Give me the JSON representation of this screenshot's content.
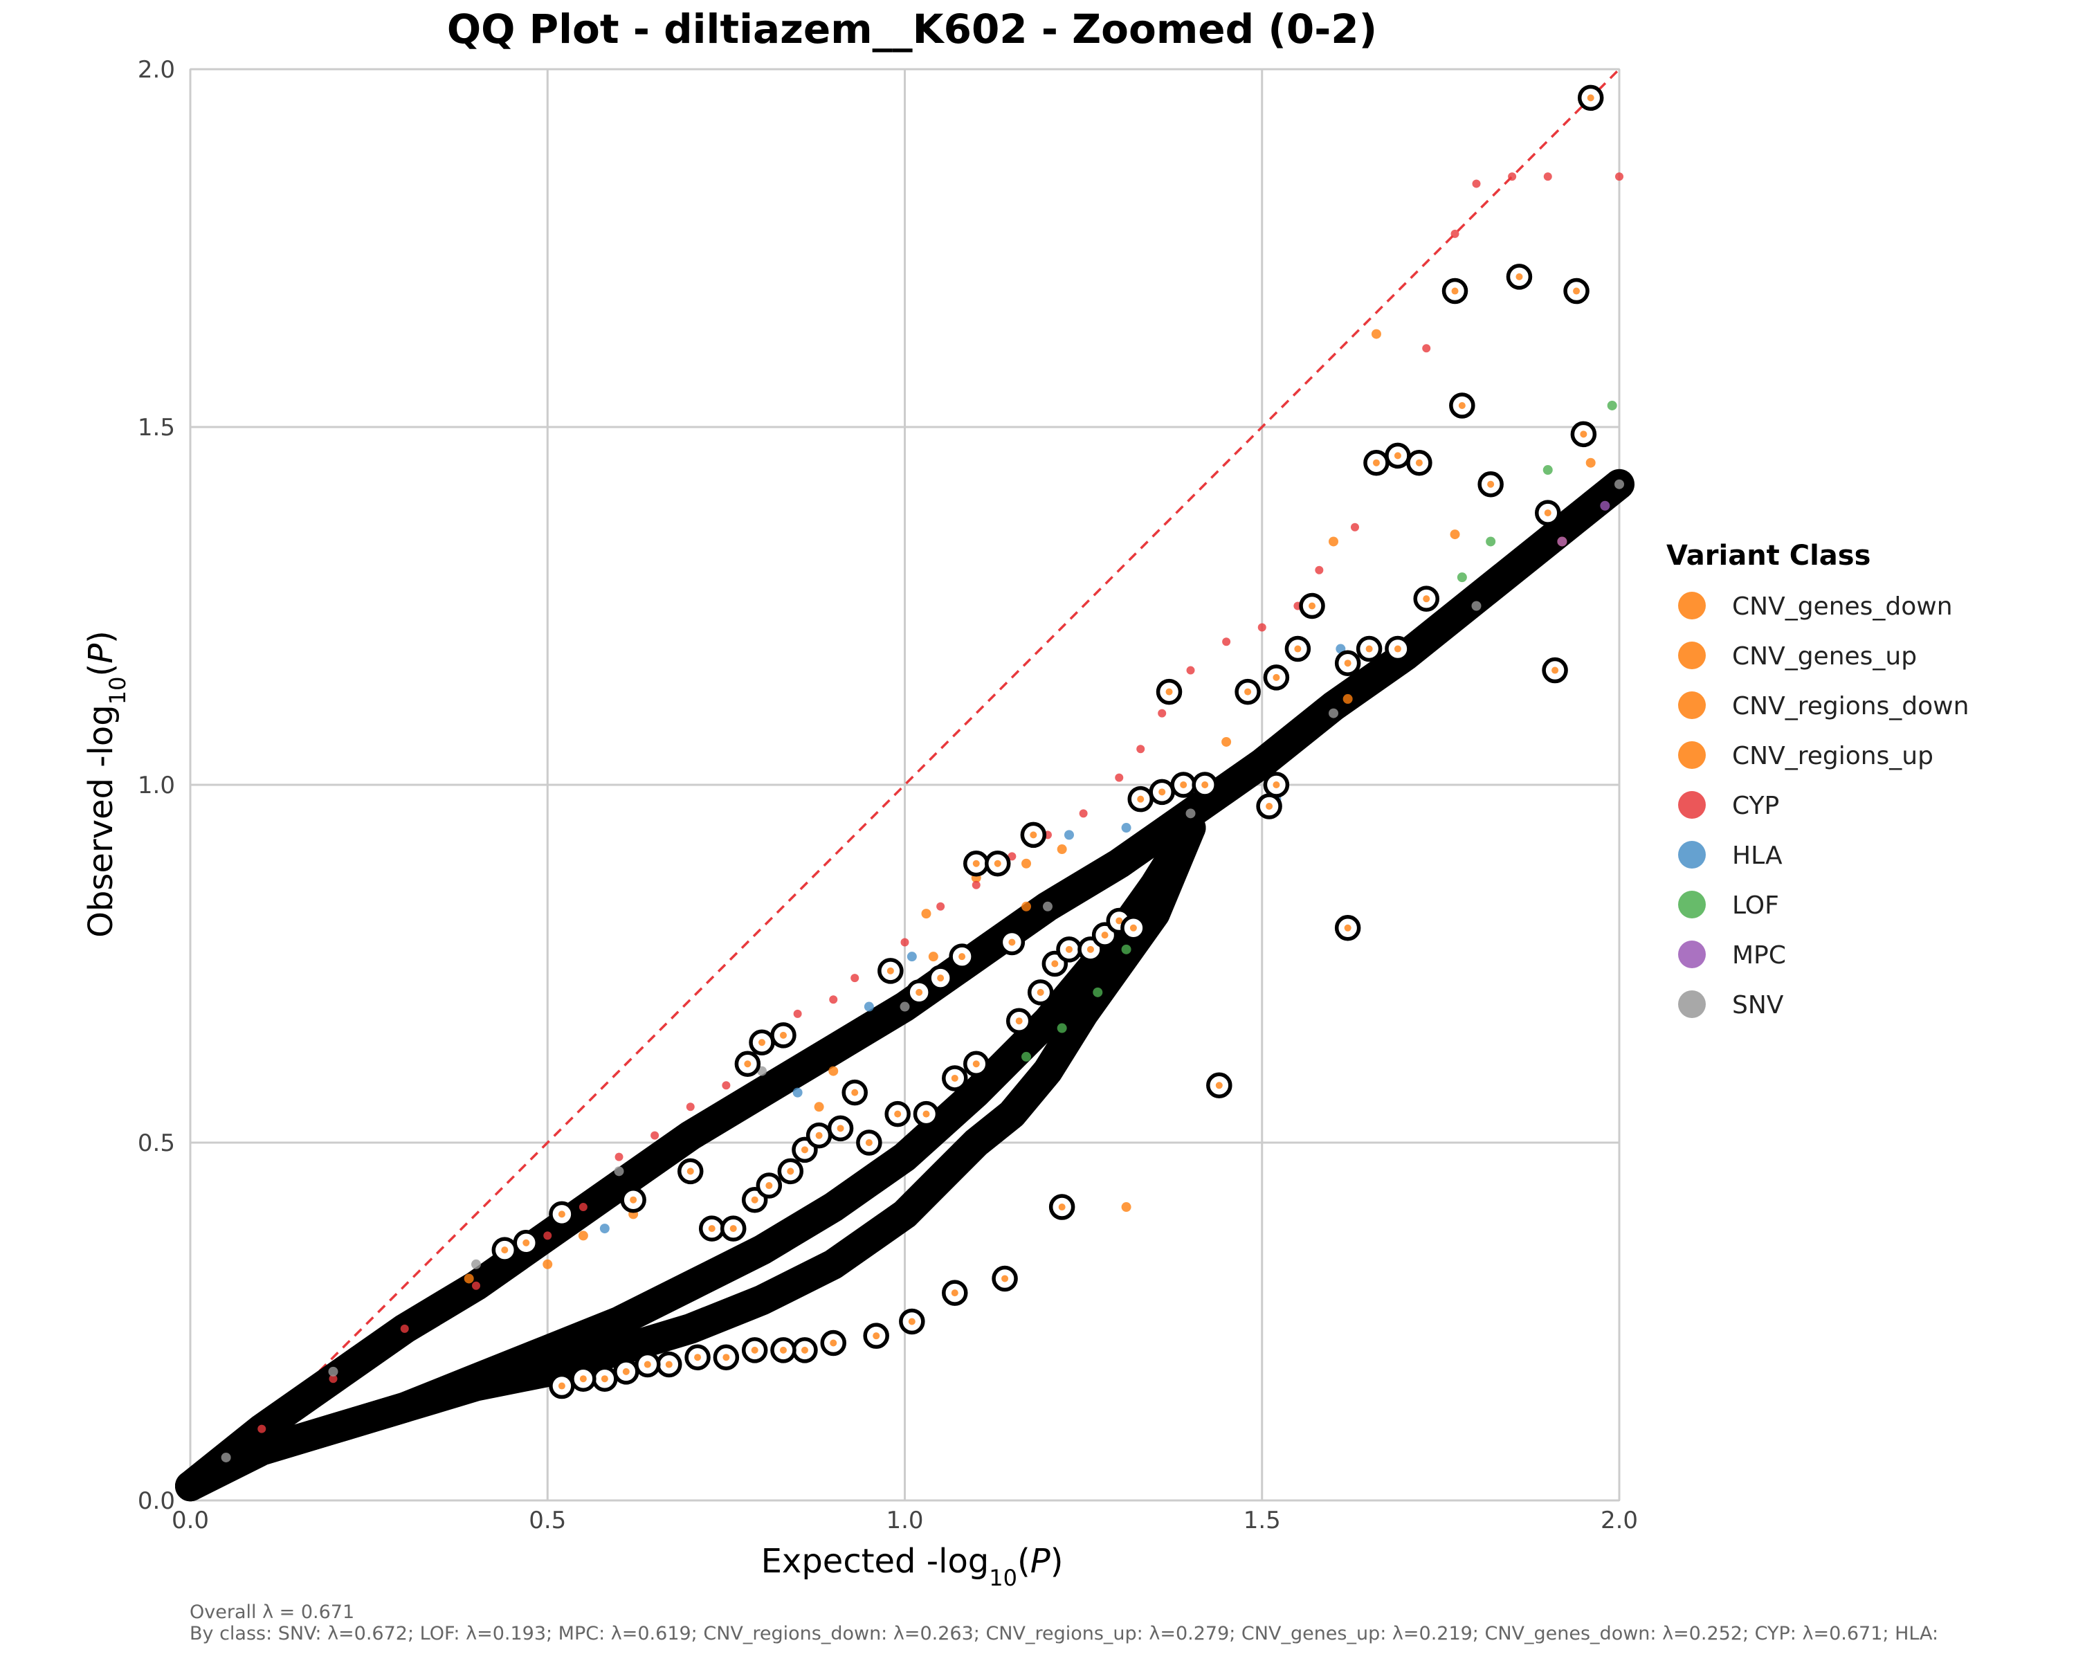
{
  "chart_data": {
    "type": "scatter",
    "title": "QQ Plot - diltiazem__K602 - Zoomed (0-2)",
    "xlabel": "Expected -log10(P)",
    "ylabel": "Observed -log10(P)",
    "xlim": [
      0,
      2
    ],
    "ylim": [
      0,
      2
    ],
    "x_ticks": [
      "0.0",
      "0.5",
      "1.0",
      "1.5",
      "2.0"
    ],
    "y_ticks": [
      "0.0",
      "0.5",
      "1.0",
      "1.5",
      "2.0"
    ],
    "grid": true,
    "legend_position": "right",
    "legend_title": "Variant Class",
    "reference_line": {
      "style": "dashed",
      "color": "#e8393c",
      "from": [
        0,
        0
      ],
      "to": [
        2,
        2
      ]
    },
    "series": [
      {
        "name": "CNV_genes_down",
        "color": "#ff7f0e",
        "points": [
          [
            0.55,
            0.37
          ],
          [
            0.9,
            0.6
          ],
          [
            1.03,
            0.82
          ],
          [
            1.17,
            0.83
          ],
          [
            1.6,
            1.34
          ],
          [
            1.96,
            1.45
          ],
          [
            1.31,
            0.41
          ]
        ]
      },
      {
        "name": "CNV_genes_up",
        "color": "#ff7f0e",
        "points": [
          [
            0.39,
            0.31
          ],
          [
            0.5,
            0.33
          ],
          [
            0.88,
            0.55
          ],
          [
            1.04,
            0.76
          ],
          [
            1.22,
            0.91
          ],
          [
            1.92,
            1.34
          ],
          [
            1.45,
            1.06
          ]
        ]
      },
      {
        "name": "CNV_regions_down",
        "color": "#ff7f0e",
        "points": [
          [
            0.52,
            0.39
          ],
          [
            0.73,
            0.38
          ],
          [
            0.94,
            0.5
          ],
          [
            1.1,
            0.87
          ],
          [
            1.77,
            1.35
          ],
          [
            1.43,
            0.58
          ]
        ]
      },
      {
        "name": "CNV_regions_up",
        "color": "#ff7f0e",
        "points": [
          [
            0.62,
            0.4
          ],
          [
            0.79,
            0.42
          ],
          [
            1.07,
            0.58
          ],
          [
            1.17,
            0.89
          ],
          [
            1.62,
            1.12
          ],
          [
            1.66,
            1.63
          ]
        ]
      },
      {
        "name": "CYP",
        "color": "#e8393c",
        "points": [
          [
            0.1,
            0.1
          ],
          [
            0.2,
            0.17
          ],
          [
            0.3,
            0.24
          ],
          [
            0.4,
            0.3
          ],
          [
            0.5,
            0.37
          ],
          [
            0.55,
            0.41
          ],
          [
            0.6,
            0.48
          ],
          [
            0.65,
            0.51
          ],
          [
            0.7,
            0.55
          ],
          [
            0.75,
            0.58
          ],
          [
            0.8,
            0.63
          ],
          [
            0.85,
            0.68
          ],
          [
            0.9,
            0.7
          ],
          [
            0.93,
            0.73
          ],
          [
            1.0,
            0.78
          ],
          [
            1.05,
            0.83
          ],
          [
            1.1,
            0.86
          ],
          [
            1.15,
            0.9
          ],
          [
            1.2,
            0.93
          ],
          [
            1.25,
            0.96
          ],
          [
            1.3,
            1.01
          ],
          [
            1.33,
            1.05
          ],
          [
            1.36,
            1.1
          ],
          [
            1.4,
            1.16
          ],
          [
            1.45,
            1.2
          ],
          [
            1.5,
            1.22
          ],
          [
            1.55,
            1.25
          ],
          [
            1.58,
            1.3
          ],
          [
            1.63,
            1.36
          ],
          [
            1.7,
            1.46
          ],
          [
            1.73,
            1.61
          ],
          [
            1.77,
            1.77
          ],
          [
            1.8,
            1.84
          ],
          [
            1.85,
            1.85
          ],
          [
            1.9,
            1.85
          ],
          [
            2.0,
            1.85
          ]
        ]
      },
      {
        "name": "HLA",
        "color": "#4a90c8",
        "points": [
          [
            0.58,
            0.38
          ],
          [
            0.85,
            0.57
          ],
          [
            0.95,
            0.69
          ],
          [
            1.01,
            0.76
          ],
          [
            1.23,
            0.93
          ],
          [
            1.31,
            0.94
          ],
          [
            1.52,
            0.98
          ],
          [
            1.61,
            1.19
          ],
          [
            1.73,
            1.26
          ]
        ]
      },
      {
        "name": "LOF",
        "color": "#4caf50",
        "points": [
          [
            1.17,
            0.62
          ],
          [
            1.22,
            0.66
          ],
          [
            1.27,
            0.71
          ],
          [
            1.31,
            0.77
          ],
          [
            1.78,
            1.29
          ],
          [
            1.82,
            1.34
          ],
          [
            1.9,
            1.44
          ],
          [
            1.99,
            1.53
          ]
        ]
      },
      {
        "name": "MPC",
        "color": "#9b59b6",
        "points": [
          [
            1.92,
            1.34
          ],
          [
            1.98,
            1.39
          ]
        ]
      },
      {
        "name": "SNV",
        "color": "#999999",
        "points": [
          [
            0.05,
            0.06
          ],
          [
            0.2,
            0.18
          ],
          [
            0.4,
            0.33
          ],
          [
            0.6,
            0.46
          ],
          [
            0.8,
            0.6
          ],
          [
            1.0,
            0.69
          ],
          [
            1.2,
            0.83
          ],
          [
            1.4,
            0.96
          ],
          [
            1.6,
            1.1
          ],
          [
            1.8,
            1.25
          ],
          [
            2.0,
            1.42
          ]
        ]
      }
    ],
    "bands": [
      {
        "color": "#000000",
        "points": [
          [
            0,
            0.02
          ],
          [
            0.1,
            0.1
          ],
          [
            0.2,
            0.17
          ],
          [
            0.3,
            0.24
          ],
          [
            0.4,
            0.3
          ],
          [
            0.5,
            0.37
          ],
          [
            0.6,
            0.44
          ],
          [
            0.7,
            0.51
          ],
          [
            0.8,
            0.57
          ],
          [
            0.9,
            0.63
          ],
          [
            1.0,
            0.69
          ],
          [
            1.1,
            0.76
          ],
          [
            1.2,
            0.83
          ],
          [
            1.3,
            0.89
          ],
          [
            1.4,
            0.96
          ],
          [
            1.5,
            1.03
          ],
          [
            1.6,
            1.11
          ],
          [
            1.7,
            1.18
          ],
          [
            1.8,
            1.26
          ],
          [
            1.9,
            1.34
          ],
          [
            2.0,
            1.42
          ]
        ]
      },
      {
        "color": "#000000",
        "points": [
          [
            0,
            0.02
          ],
          [
            0.1,
            0.07
          ],
          [
            0.2,
            0.1
          ],
          [
            0.3,
            0.13
          ],
          [
            0.4,
            0.17
          ],
          [
            0.5,
            0.21
          ],
          [
            0.6,
            0.25
          ],
          [
            0.7,
            0.3
          ],
          [
            0.8,
            0.35
          ],
          [
            0.9,
            0.41
          ],
          [
            1.0,
            0.48
          ],
          [
            1.1,
            0.57
          ],
          [
            1.2,
            0.67
          ],
          [
            1.3,
            0.79
          ],
          [
            1.35,
            0.86
          ],
          [
            1.4,
            0.94
          ]
        ]
      },
      {
        "color": "#000000",
        "points": [
          [
            0,
            0.02
          ],
          [
            0.1,
            0.07
          ],
          [
            0.2,
            0.1
          ],
          [
            0.3,
            0.13
          ],
          [
            0.4,
            0.16
          ],
          [
            0.5,
            0.18
          ],
          [
            0.6,
            0.21
          ],
          [
            0.7,
            0.24
          ],
          [
            0.8,
            0.28
          ],
          [
            0.9,
            0.33
          ],
          [
            1.0,
            0.4
          ],
          [
            1.05,
            0.45
          ],
          [
            1.1,
            0.5
          ],
          [
            1.15,
            0.54
          ],
          [
            1.2,
            0.6
          ],
          [
            1.25,
            0.68
          ],
          [
            1.3,
            0.75
          ],
          [
            1.35,
            0.82
          ],
          [
            1.4,
            0.94
          ]
        ]
      }
    ],
    "highlighted_points": [
      [
        0.44,
        0.35
      ],
      [
        0.47,
        0.36
      ],
      [
        0.52,
        0.4
      ],
      [
        0.62,
        0.42
      ],
      [
        0.78,
        0.61
      ],
      [
        0.8,
        0.64
      ],
      [
        0.83,
        0.65
      ],
      [
        0.93,
        0.57
      ],
      [
        0.98,
        0.74
      ],
      [
        1.02,
        0.71
      ],
      [
        1.05,
        0.73
      ],
      [
        1.08,
        0.76
      ],
      [
        1.1,
        0.89
      ],
      [
        1.13,
        0.89
      ],
      [
        1.15,
        0.78
      ],
      [
        1.18,
        0.93
      ],
      [
        1.33,
        0.98
      ],
      [
        1.36,
        0.99
      ],
      [
        1.37,
        1.13
      ],
      [
        1.39,
        1.0
      ],
      [
        1.42,
        1.0
      ],
      [
        1.48,
        1.13
      ],
      [
        1.52,
        1.15
      ],
      [
        1.52,
        1.0
      ],
      [
        1.51,
        0.97
      ],
      [
        1.55,
        1.19
      ],
      [
        1.57,
        1.25
      ],
      [
        1.62,
        1.17
      ],
      [
        1.65,
        1.19
      ],
      [
        1.66,
        1.45
      ],
      [
        1.69,
        1.46
      ],
      [
        1.69,
        1.19
      ],
      [
        1.72,
        1.45
      ],
      [
        1.73,
        1.26
      ],
      [
        1.77,
        1.69
      ],
      [
        1.78,
        1.53
      ],
      [
        1.82,
        1.42
      ],
      [
        1.86,
        1.71
      ],
      [
        1.9,
        1.38
      ],
      [
        1.94,
        1.69
      ],
      [
        1.95,
        1.49
      ],
      [
        1.96,
        1.96
      ],
      [
        1.91,
        1.16
      ],
      [
        1.62,
        0.8
      ],
      [
        1.44,
        0.58
      ],
      [
        1.22,
        0.41
      ],
      [
        1.14,
        0.31
      ],
      [
        1.07,
        0.29
      ],
      [
        1.01,
        0.25
      ],
      [
        0.96,
        0.23
      ],
      [
        0.9,
        0.22
      ],
      [
        0.86,
        0.21
      ],
      [
        0.83,
        0.21
      ],
      [
        0.79,
        0.21
      ],
      [
        0.75,
        0.2
      ],
      [
        0.71,
        0.2
      ],
      [
        0.67,
        0.19
      ],
      [
        0.64,
        0.19
      ],
      [
        0.61,
        0.18
      ],
      [
        0.58,
        0.17
      ],
      [
        0.55,
        0.17
      ],
      [
        0.52,
        0.16
      ],
      [
        0.7,
        0.46
      ],
      [
        0.73,
        0.38
      ],
      [
        0.76,
        0.38
      ],
      [
        0.79,
        0.42
      ],
      [
        0.81,
        0.44
      ],
      [
        0.84,
        0.46
      ],
      [
        0.86,
        0.49
      ],
      [
        0.88,
        0.51
      ],
      [
        0.91,
        0.52
      ],
      [
        0.95,
        0.5
      ],
      [
        0.99,
        0.54
      ],
      [
        1.03,
        0.54
      ],
      [
        1.07,
        0.59
      ],
      [
        1.1,
        0.61
      ],
      [
        1.16,
        0.67
      ],
      [
        1.19,
        0.71
      ],
      [
        1.21,
        0.75
      ],
      [
        1.23,
        0.77
      ],
      [
        1.26,
        0.77
      ],
      [
        1.28,
        0.79
      ],
      [
        1.3,
        0.81
      ],
      [
        1.32,
        0.8
      ]
    ],
    "footer_lines": [
      "Overall λ = 0.671",
      "By class: SNV: λ=0.672; LOF: λ=0.193; MPC: λ=0.619; CNV_regions_down: λ=0.263; CNV_regions_up: λ=0.279; CNV_genes_up: λ=0.219; CNV_genes_down: λ=0.252; CYP: λ=0.671; HLA:"
    ]
  }
}
